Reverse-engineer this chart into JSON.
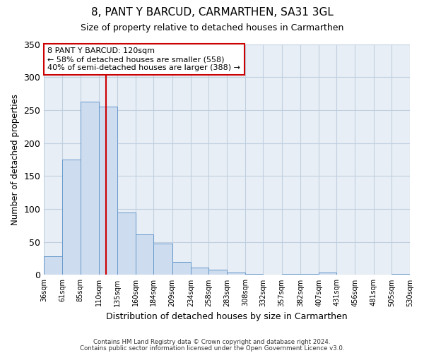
{
  "title": "8, PANT Y BARCUD, CARMARTHEN, SA31 3GL",
  "subtitle": "Size of property relative to detached houses in Carmarthen",
  "xlabel": "Distribution of detached houses by size in Carmarthen",
  "ylabel": "Number of detached properties",
  "bar_values": [
    28,
    175,
    263,
    255,
    95,
    62,
    48,
    20,
    11,
    8,
    4,
    1,
    0,
    2,
    1,
    4,
    0,
    0,
    0,
    1
  ],
  "bin_edges": [
    36,
    61,
    85,
    110,
    135,
    160,
    184,
    209,
    234,
    258,
    283,
    308,
    332,
    357,
    382,
    407,
    431,
    456,
    481,
    505,
    530
  ],
  "bin_labels": [
    "36sqm",
    "61sqm",
    "85sqm",
    "110sqm",
    "135sqm",
    "160sqm",
    "184sqm",
    "209sqm",
    "234sqm",
    "258sqm",
    "283sqm",
    "308sqm",
    "332sqm",
    "357sqm",
    "382sqm",
    "407sqm",
    "431sqm",
    "456sqm",
    "481sqm",
    "505sqm",
    "530sqm"
  ],
  "bar_color": "#cddcee",
  "bar_edge_color": "#6699cc",
  "vline_x": 120,
  "vline_color": "#cc0000",
  "annotation_title": "8 PANT Y BARCUD: 120sqm",
  "annotation_line1": "← 58% of detached houses are smaller (558)",
  "annotation_line2": "40% of semi-detached houses are larger (388) →",
  "annotation_box_facecolor": "white",
  "annotation_box_edgecolor": "#cc0000",
  "ylim": [
    0,
    350
  ],
  "yticks": [
    0,
    50,
    100,
    150,
    200,
    250,
    300,
    350
  ],
  "footer1": "Contains HM Land Registry data © Crown copyright and database right 2024.",
  "footer2": "Contains public sector information licensed under the Open Government Licence v3.0.",
  "axes_bg_color": "#e8eef5",
  "fig_bg_color": "#ffffff",
  "grid_color": "#c0cfe0"
}
